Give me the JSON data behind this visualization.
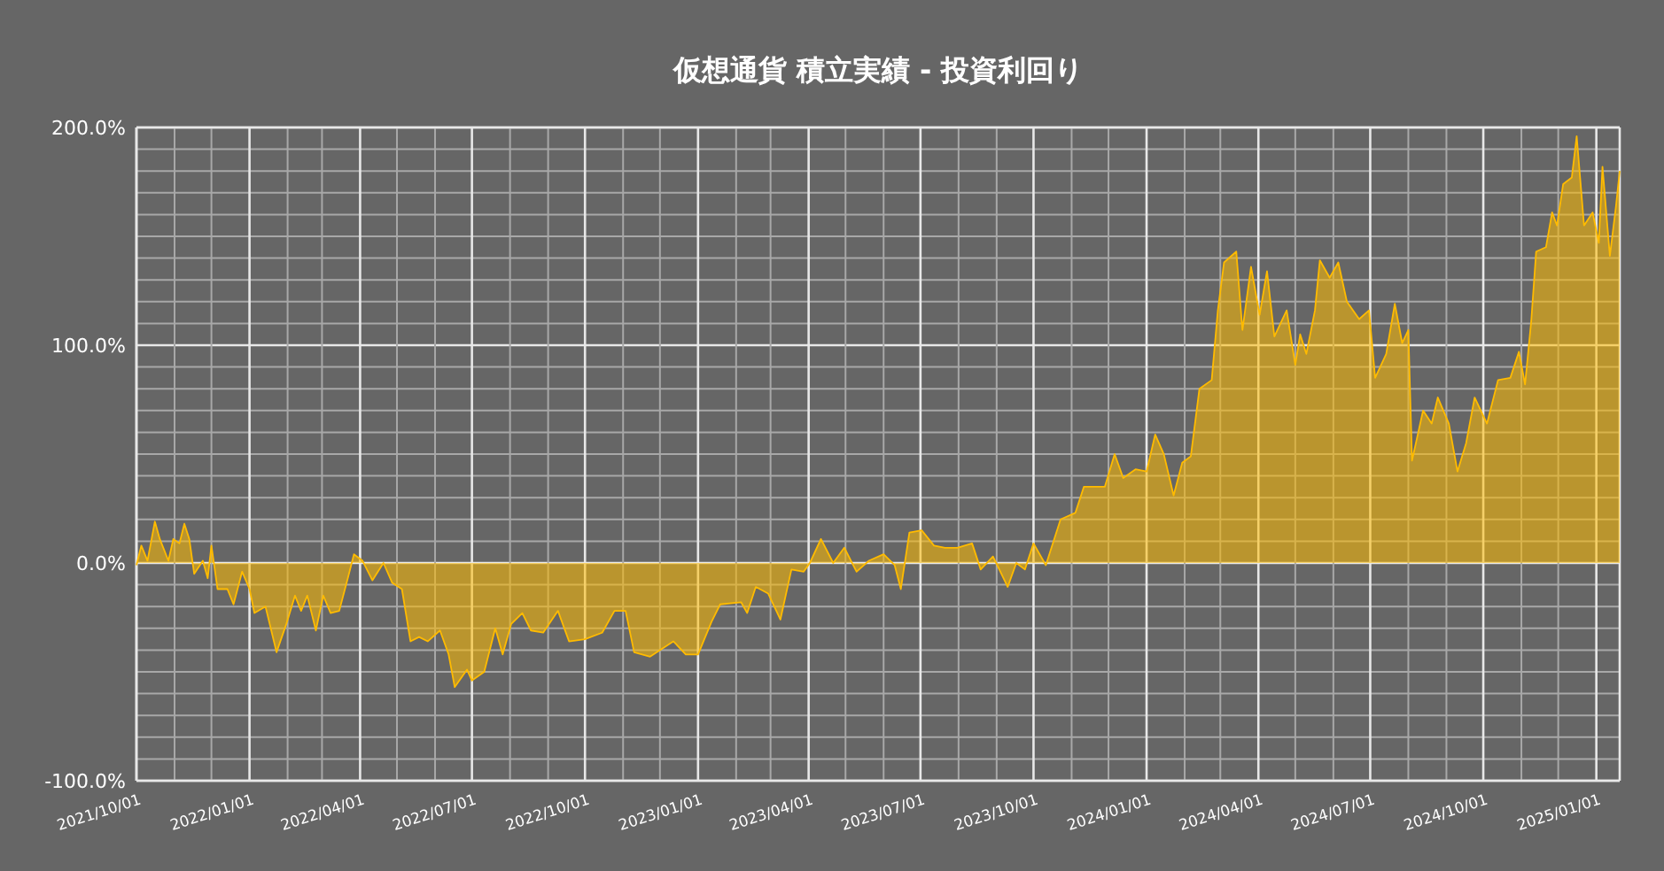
{
  "chart_data": {
    "type": "area",
    "title": "仮想通貨 積立実績 - 投資利回り",
    "grid": true,
    "xlim": [
      "2021-10-01",
      "2025-01-20"
    ],
    "ylim": [
      -100,
      200
    ],
    "yticks": [
      {
        "value": -100,
        "label": "-100.0%"
      },
      {
        "value": -90,
        "label": null
      },
      {
        "value": -80,
        "label": null
      },
      {
        "value": -70,
        "label": null
      },
      {
        "value": -60,
        "label": null
      },
      {
        "value": -50,
        "label": null
      },
      {
        "value": -40,
        "label": null
      },
      {
        "value": -30,
        "label": null
      },
      {
        "value": -20,
        "label": null
      },
      {
        "value": -10,
        "label": null
      },
      {
        "value": 0,
        "label": "0.0%"
      },
      {
        "value": 10,
        "label": null
      },
      {
        "value": 20,
        "label": null
      },
      {
        "value": 30,
        "label": null
      },
      {
        "value": 40,
        "label": null
      },
      {
        "value": 50,
        "label": null
      },
      {
        "value": 60,
        "label": null
      },
      {
        "value": 70,
        "label": null
      },
      {
        "value": 80,
        "label": null
      },
      {
        "value": 90,
        "label": null
      },
      {
        "value": 100,
        "label": "100.0%"
      },
      {
        "value": 110,
        "label": null
      },
      {
        "value": 120,
        "label": null
      },
      {
        "value": 130,
        "label": null
      },
      {
        "value": 140,
        "label": null
      },
      {
        "value": 150,
        "label": null
      },
      {
        "value": 160,
        "label": null
      },
      {
        "value": 170,
        "label": null
      },
      {
        "value": 180,
        "label": null
      },
      {
        "value": 190,
        "label": null
      },
      {
        "value": 200,
        "label": "200.0%"
      }
    ],
    "xticks": [
      {
        "value": "2021-10-01",
        "label": "2021/10/01"
      },
      {
        "value": "2021-11-01",
        "label": null
      },
      {
        "value": "2021-12-01",
        "label": null
      },
      {
        "value": "2022-01-01",
        "label": "2022/01/01"
      },
      {
        "value": "2022-02-01",
        "label": null
      },
      {
        "value": "2022-03-01",
        "label": null
      },
      {
        "value": "2022-04-01",
        "label": "2022/04/01"
      },
      {
        "value": "2022-05-01",
        "label": null
      },
      {
        "value": "2022-06-01",
        "label": null
      },
      {
        "value": "2022-07-01",
        "label": "2022/07/01"
      },
      {
        "value": "2022-08-01",
        "label": null
      },
      {
        "value": "2022-09-01",
        "label": null
      },
      {
        "value": "2022-10-01",
        "label": "2022/10/01"
      },
      {
        "value": "2022-11-01",
        "label": null
      },
      {
        "value": "2022-12-01",
        "label": null
      },
      {
        "value": "2023-01-01",
        "label": "2023/01/01"
      },
      {
        "value": "2023-02-01",
        "label": null
      },
      {
        "value": "2023-03-01",
        "label": null
      },
      {
        "value": "2023-04-01",
        "label": "2023/04/01"
      },
      {
        "value": "2023-05-01",
        "label": null
      },
      {
        "value": "2023-06-01",
        "label": null
      },
      {
        "value": "2023-07-01",
        "label": "2023/07/01"
      },
      {
        "value": "2023-08-01",
        "label": null
      },
      {
        "value": "2023-09-01",
        "label": null
      },
      {
        "value": "2023-10-01",
        "label": "2023/10/01"
      },
      {
        "value": "2023-11-01",
        "label": null
      },
      {
        "value": "2023-12-01",
        "label": null
      },
      {
        "value": "2024-01-01",
        "label": "2024/01/01"
      },
      {
        "value": "2024-02-01",
        "label": null
      },
      {
        "value": "2024-03-01",
        "label": null
      },
      {
        "value": "2024-04-01",
        "label": "2024/04/01"
      },
      {
        "value": "2024-05-01",
        "label": null
      },
      {
        "value": "2024-06-01",
        "label": null
      },
      {
        "value": "2024-07-01",
        "label": "2024/07/01"
      },
      {
        "value": "2024-08-01",
        "label": null
      },
      {
        "value": "2024-09-01",
        "label": null
      },
      {
        "value": "2024-10-01",
        "label": "2024/10/01"
      },
      {
        "value": "2024-11-01",
        "label": null
      },
      {
        "value": "2024-12-01",
        "label": null
      },
      {
        "value": "2025-01-01",
        "label": "2025/01/01"
      }
    ],
    "x": [
      "2021-10-01",
      "2021-10-05",
      "2021-10-10",
      "2021-10-16",
      "2021-10-20",
      "2021-10-27",
      "2021-10-31",
      "2021-11-05",
      "2021-11-09",
      "2021-11-13",
      "2021-11-17",
      "2021-11-24",
      "2021-11-28",
      "2021-12-01",
      "2021-12-06",
      "2021-12-14",
      "2021-12-19",
      "2021-12-26",
      "2022-01-01",
      "2022-01-05",
      "2022-01-14",
      "2022-01-23",
      "2022-01-31",
      "2022-02-07",
      "2022-02-12",
      "2022-02-17",
      "2022-02-24",
      "2022-03-02",
      "2022-03-08",
      "2022-03-15",
      "2022-03-22",
      "2022-03-27",
      "2022-04-03",
      "2022-04-11",
      "2022-04-20",
      "2022-04-27",
      "2022-05-05",
      "2022-05-12",
      "2022-05-19",
      "2022-05-26",
      "2022-06-05",
      "2022-06-12",
      "2022-06-17",
      "2022-06-27",
      "2022-07-01",
      "2022-07-11",
      "2022-07-20",
      "2022-07-26",
      "2022-08-02",
      "2022-08-11",
      "2022-08-18",
      "2022-08-28",
      "2022-09-09",
      "2022-09-18",
      "2022-10-01",
      "2022-10-15",
      "2022-10-25",
      "2022-11-03",
      "2022-11-10",
      "2022-11-23",
      "2022-12-12",
      "2022-12-22",
      "2023-01-01",
      "2023-01-12",
      "2023-01-19",
      "2023-02-05",
      "2023-02-10",
      "2023-02-17",
      "2023-02-27",
      "2023-03-09",
      "2023-03-18",
      "2023-03-28",
      "2023-04-02",
      "2023-04-11",
      "2023-04-21",
      "2023-04-30",
      "2023-05-10",
      "2023-05-20",
      "2023-06-01",
      "2023-06-10",
      "2023-06-15",
      "2023-06-22",
      "2023-07-02",
      "2023-07-12",
      "2023-07-21",
      "2023-07-31",
      "2023-08-12",
      "2023-08-19",
      "2023-08-29",
      "2023-09-10",
      "2023-09-17",
      "2023-09-24",
      "2023-10-01",
      "2023-10-11",
      "2023-10-23",
      "2023-11-04",
      "2023-11-11",
      "2023-11-21",
      "2023-11-28",
      "2023-12-06",
      "2023-12-13",
      "2023-12-23",
      "2024-01-01",
      "2024-01-08",
      "2024-01-15",
      "2024-01-23",
      "2024-01-30",
      "2024-02-06",
      "2024-02-13",
      "2024-02-23",
      "2024-02-28",
      "2024-03-04",
      "2024-03-14",
      "2024-03-19",
      "2024-03-26",
      "2024-04-02",
      "2024-04-08",
      "2024-04-14",
      "2024-04-24",
      "2024-05-01",
      "2024-05-05",
      "2024-05-10",
      "2024-05-17",
      "2024-05-21",
      "2024-05-29",
      "2024-06-05",
      "2024-06-12",
      "2024-06-22",
      "2024-06-30",
      "2024-07-05",
      "2024-07-14",
      "2024-07-21",
      "2024-07-27",
      "2024-08-01",
      "2024-08-04",
      "2024-08-13",
      "2024-08-20",
      "2024-08-25",
      "2024-09-03",
      "2024-09-10",
      "2024-09-17",
      "2024-09-24",
      "2024-10-04",
      "2024-10-13",
      "2024-10-23",
      "2024-10-30",
      "2024-11-04",
      "2024-11-09",
      "2024-11-13",
      "2024-11-21",
      "2024-11-26",
      "2024-11-30",
      "2024-12-05",
      "2024-12-12",
      "2024-12-16",
      "2024-12-22",
      "2024-12-29",
      "2025-01-03",
      "2025-01-06",
      "2025-01-12",
      "2025-01-17",
      "2025-01-20"
    ],
    "series": [
      {
        "color": "#ffbb00",
        "values": [
          -1,
          8,
          1,
          19,
          11,
          1,
          11,
          9,
          18,
          11,
          -5,
          1,
          -7,
          8,
          -12,
          -12,
          -19,
          -4,
          -12,
          -23,
          -20,
          -41,
          -28,
          -15,
          -22,
          -15,
          -31,
          -15,
          -23,
          -22,
          -7,
          4,
          1,
          -8,
          0,
          -9,
          -12,
          -36,
          -34,
          -36,
          -31,
          -42,
          -57,
          -49,
          -54,
          -50,
          -30,
          -42,
          -28,
          -23,
          -31,
          -32,
          -22,
          -36,
          -35,
          -32,
          -22,
          -22,
          -41,
          -43,
          -36,
          -42,
          -42,
          -27,
          -19,
          -18,
          -23,
          -11,
          -14,
          -26,
          -3,
          -4,
          0,
          11,
          0,
          7,
          -4,
          1,
          4,
          -1,
          -12,
          14,
          15,
          8,
          7,
          7,
          9,
          -3,
          3,
          -11,
          0,
          -3,
          9,
          -1,
          20,
          23,
          35,
          35,
          35,
          50,
          39,
          43,
          42,
          59,
          50,
          31,
          46,
          49,
          80,
          84,
          116,
          138,
          143,
          107,
          136,
          114,
          134,
          104,
          116,
          91,
          105,
          96,
          116,
          139,
          131,
          138,
          120,
          112,
          116,
          85,
          96,
          119,
          101,
          107,
          47,
          70,
          64,
          76,
          64,
          42,
          55,
          76,
          64,
          84,
          85,
          97,
          82,
          111,
          143,
          145,
          161,
          155,
          174,
          177,
          196,
          155,
          161,
          147,
          182,
          141,
          164,
          180
        ]
      }
    ]
  }
}
